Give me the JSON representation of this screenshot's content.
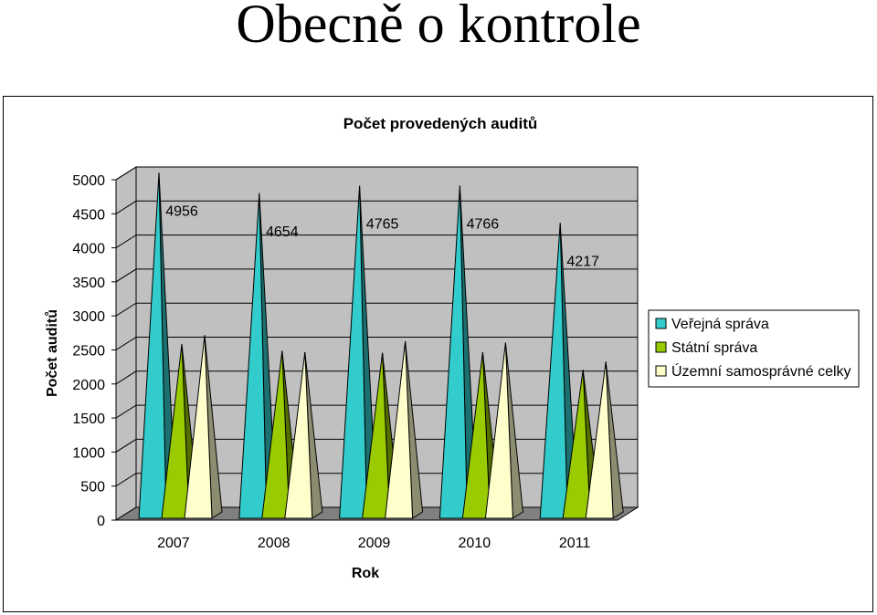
{
  "slide": {
    "title": "Obecně o kontrole"
  },
  "chart_data": {
    "type": "bar",
    "style": "3d-pyramid",
    "title": "Počet provedených auditů",
    "xlabel": "Rok",
    "ylabel": "Počet auditů",
    "ylim": [
      0,
      5000
    ],
    "yticks": [
      "0",
      "500",
      "1000",
      "1500",
      "2000",
      "2500",
      "3000",
      "3500",
      "4000",
      "4500",
      "5000"
    ],
    "categories": [
      "2007",
      "2008",
      "2009",
      "2010",
      "2011"
    ],
    "grid": true,
    "legend_position": "right",
    "series": [
      {
        "name": "Veřejná správa",
        "values": [
          4956,
          4654,
          4765,
          4766,
          4217
        ],
        "labels": [
          "4956",
          "4654",
          "4765",
          "4766",
          "4217"
        ],
        "color": "#33CCCC"
      },
      {
        "name": "Státní správa",
        "values": [
          2440,
          2340,
          2310,
          2320,
          2060
        ],
        "color": "#99CC00"
      },
      {
        "name": "Územní samosprávné celky",
        "values": [
          2570,
          2320,
          2480,
          2460,
          2180
        ],
        "color": "#FFFFCC"
      }
    ],
    "colors": {
      "wall": "#C0C0C0",
      "floor": "#808080",
      "grid": "#000000"
    }
  }
}
